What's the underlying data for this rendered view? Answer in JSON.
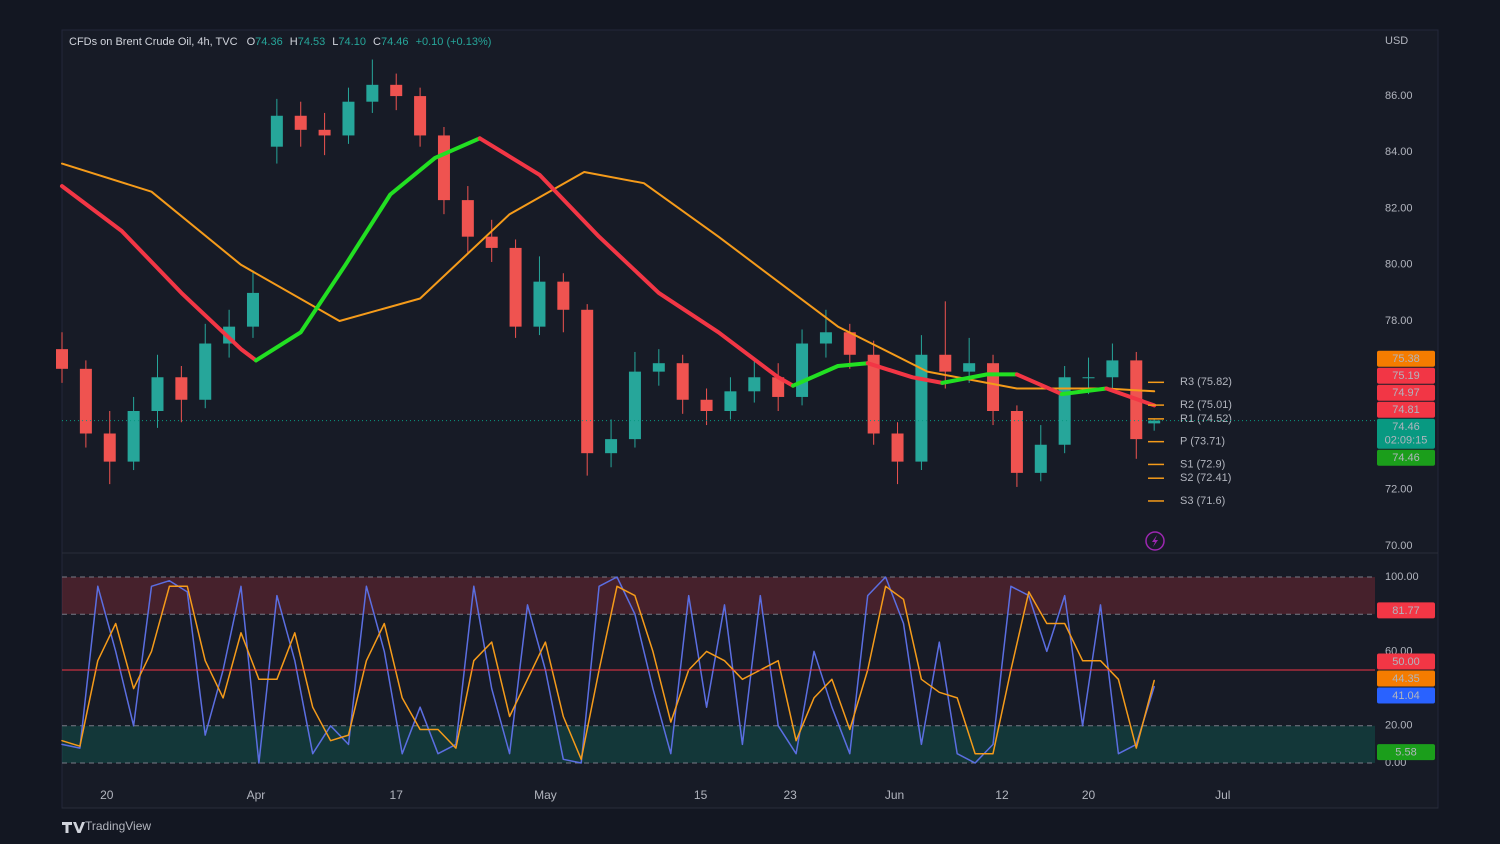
{
  "header": {
    "title": "CFDs on Brent Crude Oil, 4h, TVC",
    "ohlc": [
      {
        "label": "O",
        "value": "74.36"
      },
      {
        "label": "H",
        "value": "74.53"
      },
      {
        "label": "L",
        "value": "74.10"
      },
      {
        "label": "C",
        "value": "74.46"
      }
    ],
    "change": "+0.10 (+0.13%)"
  },
  "currency": "USD",
  "brand": "TradingView",
  "chart_data": [
    {
      "type": "candlestick",
      "xlim": [
        0,
        440
      ],
      "xticks": [
        {
          "value": 15,
          "label": "20"
        },
        {
          "value": 65,
          "label": "Apr"
        },
        {
          "value": 112,
          "label": "17"
        },
        {
          "value": 162,
          "label": "May"
        },
        {
          "value": 214,
          "label": "15"
        },
        {
          "value": 244,
          "label": "23"
        },
        {
          "value": 279,
          "label": "Jun"
        },
        {
          "value": 315,
          "label": "12"
        },
        {
          "value": 344,
          "label": "20"
        },
        {
          "value": 389,
          "label": "Jul"
        }
      ],
      "ylim": [
        69.75,
        88.35
      ],
      "yticks": [
        {
          "value": 70,
          "label": "70.00"
        },
        {
          "value": 72,
          "label": "72.00"
        },
        {
          "value": 74,
          "label": "74.00"
        },
        {
          "value": 76,
          "label": "76.00"
        },
        {
          "value": 78,
          "label": "78.00"
        },
        {
          "value": 80,
          "label": "80.00"
        },
        {
          "value": 82,
          "label": "82.00"
        },
        {
          "value": 84,
          "label": "84.00"
        },
        {
          "value": 86,
          "label": "86.00"
        }
      ],
      "up_color": "#26a69a",
      "down_color": "#ef5350",
      "x": [
        0,
        8,
        16,
        24,
        32,
        40,
        48,
        56,
        64,
        72,
        80,
        88,
        96,
        104,
        112,
        120,
        128,
        136,
        144,
        152,
        160,
        168,
        176,
        184,
        192,
        200,
        208,
        216,
        224,
        232,
        240,
        248,
        256,
        264,
        272,
        280,
        288,
        296,
        304,
        312,
        320,
        328,
        336,
        344,
        352,
        360,
        366
      ],
      "open": [
        77.0,
        76.3,
        74.0,
        73.0,
        74.8,
        76.0,
        75.2,
        77.2,
        77.8,
        84.2,
        85.3,
        84.8,
        84.6,
        85.8,
        86.4,
        86.0,
        84.6,
        82.3,
        81.0,
        80.6,
        77.8,
        79.4,
        78.4,
        73.3,
        73.8,
        76.2,
        76.5,
        75.2,
        74.8,
        75.5,
        76.0,
        75.3,
        77.2,
        77.6,
        76.8,
        74.0,
        73.0,
        76.8,
        76.2,
        76.5,
        74.8,
        72.6,
        73.6,
        76.0,
        76.0,
        76.6,
        74.36
      ],
      "high": [
        77.6,
        76.6,
        74.8,
        75.3,
        76.8,
        76.4,
        77.9,
        78.4,
        79.8,
        85.9,
        85.8,
        85.4,
        86.3,
        87.3,
        86.8,
        86.3,
        84.9,
        82.8,
        81.6,
        80.9,
        80.3,
        79.7,
        78.6,
        74.5,
        76.9,
        77.0,
        76.8,
        75.6,
        76.0,
        76.7,
        76.5,
        77.7,
        78.4,
        77.9,
        77.3,
        74.4,
        77.5,
        78.7,
        77.4,
        76.8,
        75.0,
        74.3,
        76.4,
        76.7,
        77.2,
        76.9,
        74.53
      ],
      "low": [
        75.8,
        73.5,
        72.2,
        72.7,
        74.2,
        74.4,
        74.9,
        76.7,
        77.4,
        83.6,
        84.2,
        83.9,
        84.3,
        85.4,
        85.5,
        84.2,
        81.8,
        80.4,
        80.1,
        77.4,
        77.5,
        77.6,
        72.5,
        72.8,
        73.5,
        75.7,
        74.7,
        74.3,
        74.5,
        75.1,
        74.8,
        75.0,
        76.7,
        76.3,
        73.6,
        72.2,
        72.7,
        75.6,
        75.8,
        74.3,
        72.1,
        72.3,
        73.3,
        75.4,
        75.6,
        73.1,
        74.1
      ],
      "close": [
        76.3,
        74.0,
        73.0,
        74.8,
        76.0,
        75.2,
        77.2,
        77.8,
        79.0,
        85.3,
        84.8,
        84.6,
        85.8,
        86.4,
        86.0,
        84.6,
        82.3,
        81.0,
        80.6,
        77.8,
        79.4,
        78.4,
        73.3,
        73.8,
        76.2,
        76.5,
        75.2,
        74.8,
        75.5,
        76.0,
        75.3,
        77.2,
        77.6,
        76.8,
        74.0,
        73.0,
        76.8,
        76.2,
        76.5,
        74.8,
        72.6,
        73.6,
        76.0,
        76.0,
        76.6,
        73.8,
        74.46
      ],
      "series": [
        {
          "color": "#f59b1a",
          "width": 2,
          "x": [
            0,
            30,
            60,
            93,
            120,
            150,
            175,
            195,
            220,
            260,
            290,
            320,
            350,
            366
          ],
          "values": [
            83.6,
            82.6,
            80.0,
            78.0,
            78.8,
            81.8,
            83.3,
            82.9,
            81.0,
            77.8,
            76.2,
            75.6,
            75.6,
            75.5
          ]
        },
        {
          "color": "#f23645",
          "width": 4,
          "x": [
            0,
            20,
            40,
            60,
            65
          ],
          "values": [
            82.8,
            81.2,
            79.0,
            77.0,
            76.6
          ]
        },
        {
          "color": "#22e022",
          "width": 4,
          "x": [
            65,
            80,
            95,
            110,
            125,
            140
          ],
          "values": [
            76.6,
            77.6,
            80.0,
            82.5,
            83.8,
            84.5
          ]
        },
        {
          "color": "#f23645",
          "width": 4,
          "x": [
            140,
            160,
            180,
            200,
            220,
            240,
            245
          ],
          "values": [
            84.5,
            83.2,
            81.0,
            79.0,
            77.6,
            76.0,
            75.7
          ]
        },
        {
          "color": "#22e022",
          "width": 4,
          "x": [
            245,
            260,
            270
          ],
          "values": [
            75.7,
            76.4,
            76.5
          ]
        },
        {
          "color": "#f23645",
          "width": 4,
          "x": [
            270,
            285,
            295
          ],
          "values": [
            76.5,
            76.0,
            75.8
          ]
        },
        {
          "color": "#22e022",
          "width": 4,
          "x": [
            295,
            310,
            320
          ],
          "values": [
            75.8,
            76.1,
            76.1
          ]
        },
        {
          "color": "#f23645",
          "width": 4,
          "x": [
            320,
            335
          ],
          "values": [
            76.1,
            75.4
          ]
        },
        {
          "color": "#22e022",
          "width": 4,
          "x": [
            335,
            350
          ],
          "values": [
            75.4,
            75.6
          ]
        },
        {
          "color": "#f23645",
          "width": 4,
          "x": [
            350,
            366
          ],
          "values": [
            75.6,
            75.0
          ]
        }
      ],
      "pivot_color": "#f59b1a",
      "pivots": [
        {
          "label": "R3 (75.82)",
          "value": 75.82
        },
        {
          "label": "R2 (75.01)",
          "value": 75.01
        },
        {
          "label": "R1 (74.52)",
          "value": 74.52
        },
        {
          "label": "P (73.71)",
          "value": 73.71
        },
        {
          "label": "S1 (72.9)",
          "value": 72.9
        },
        {
          "label": "S2 (72.41)",
          "value": 72.41
        },
        {
          "label": "S3 (71.6)",
          "value": 71.6
        }
      ],
      "badges": [
        {
          "value": 75.38,
          "color": "#f57c00"
        },
        {
          "value": 75.19,
          "color": "#f23645"
        },
        {
          "value": 74.97,
          "color": "#f23645"
        },
        {
          "value": 74.81,
          "color": "#f23645"
        },
        {
          "value": 74.46,
          "color": "#089981",
          "countdown": "02:09:15",
          "line": true
        },
        {
          "value": 74.46,
          "color": "#1b9e1b"
        }
      ]
    },
    {
      "type": "line",
      "ylim": [
        -24.2,
        112.9
      ],
      "yticks": [
        {
          "value": 0,
          "label": "0.00"
        },
        {
          "value": 20,
          "label": "20.00"
        },
        {
          "value": 60,
          "label": "60.00"
        },
        {
          "value": 100,
          "label": "100.00"
        }
      ],
      "bands": [
        {
          "range": [
            80,
            100
          ],
          "color": "rgba(242,54,69,0.22)"
        },
        {
          "range": [
            0,
            20
          ],
          "color": "rgba(8,153,129,0.22)"
        }
      ],
      "series": [
        {
          "color": "#5b6ee1",
          "width": 1.5,
          "x": [
            0,
            6,
            12,
            18,
            24,
            30,
            36,
            42,
            48,
            54,
            60,
            66,
            72,
            78,
            84,
            90,
            96,
            102,
            108,
            114,
            120,
            126,
            132,
            138,
            144,
            150,
            156,
            162,
            168,
            174,
            180,
            186,
            192,
            198,
            204,
            210,
            216,
            222,
            228,
            234,
            240,
            246,
            252,
            258,
            264,
            270,
            276,
            282,
            288,
            294,
            300,
            306,
            312,
            318,
            324,
            330,
            336,
            342,
            348,
            354,
            360,
            366
          ],
          "values": [
            10,
            8,
            95,
            60,
            20,
            95,
            98,
            92,
            15,
            50,
            95,
            0,
            90,
            55,
            5,
            20,
            10,
            95,
            60,
            5,
            30,
            5,
            10,
            95,
            40,
            5,
            85,
            50,
            2,
            0,
            95,
            100,
            80,
            40,
            5,
            90,
            30,
            85,
            10,
            90,
            20,
            5,
            60,
            30,
            5,
            90,
            100,
            75,
            10,
            65,
            5,
            0,
            10,
            95,
            90,
            60,
            90,
            20,
            85,
            5,
            10,
            41.04
          ]
        },
        {
          "color": "#f59b1a",
          "width": 1.5,
          "x": [
            0,
            6,
            12,
            18,
            24,
            30,
            36,
            42,
            48,
            54,
            60,
            66,
            72,
            78,
            84,
            90,
            96,
            102,
            108,
            114,
            120,
            126,
            132,
            138,
            144,
            150,
            156,
            162,
            168,
            174,
            180,
            186,
            192,
            198,
            204,
            210,
            216,
            222,
            228,
            234,
            240,
            246,
            252,
            258,
            264,
            270,
            276,
            282,
            288,
            294,
            300,
            306,
            312,
            318,
            324,
            330,
            336,
            342,
            348,
            354,
            360,
            366
          ],
          "values": [
            12,
            9,
            55,
            75,
            40,
            60,
            95,
            95,
            55,
            35,
            70,
            45,
            45,
            70,
            30,
            12,
            15,
            55,
            75,
            35,
            18,
            18,
            8,
            55,
            65,
            25,
            45,
            65,
            25,
            2,
            50,
            95,
            90,
            60,
            22,
            50,
            60,
            55,
            45,
            50,
            55,
            12,
            35,
            45,
            18,
            50,
            95,
            88,
            45,
            38,
            35,
            5,
            5,
            50,
            92,
            75,
            75,
            55,
            55,
            45,
            8,
            44.35
          ]
        }
      ],
      "badges": [
        {
          "value": 81.77,
          "color": "#f23645"
        },
        {
          "value": 50,
          "label": "50.00",
          "color": "#f23645",
          "line": true
        },
        {
          "value": 44.35,
          "color": "#f57c00"
        },
        {
          "value": 41.04,
          "color": "#2962ff"
        },
        {
          "value": 5.58,
          "color": "#1b9e1b"
        }
      ]
    }
  ]
}
